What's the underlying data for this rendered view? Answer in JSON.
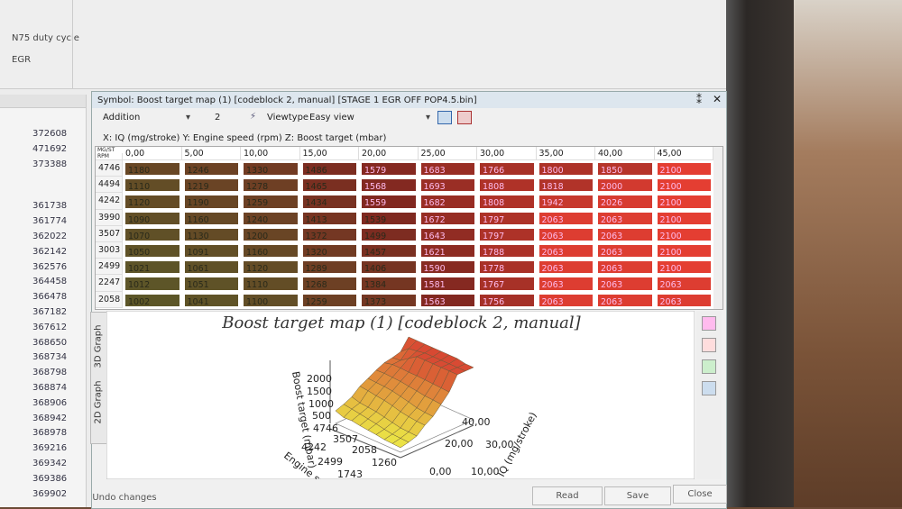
{
  "side_panel": {
    "items": [
      "N75 duty cycle",
      "EGR"
    ]
  },
  "address_list": [
    "372608",
    "471692",
    "373388",
    "361738",
    "361774",
    "362022",
    "362142",
    "362576",
    "364458",
    "366478",
    "367182",
    "367612",
    "368650",
    "368734",
    "368798",
    "368874",
    "368906",
    "368942",
    "368978",
    "369216",
    "369342",
    "369386",
    "369902"
  ],
  "window": {
    "title": "Symbol: Boost target map (1) [codeblock 2, manual] [STAGE 1 EGR OFF POP4.5.bin]",
    "toolbar": {
      "operation": "Addition",
      "amount": "2",
      "viewtype_label": "Viewtype",
      "viewtype": "Easy view"
    },
    "axes_description": "X: IQ (mg/stroke) Y: Engine speed (rpm) Z: Boost target (mbar)",
    "table": {
      "corner": [
        "MG/ST",
        "RPM"
      ],
      "columns": [
        "0,00",
        "5,00",
        "10,00",
        "15,00",
        "20,00",
        "25,00",
        "30,00",
        "35,00",
        "40,00",
        "45,00"
      ],
      "rows": [
        {
          "rpm": 4746,
          "values": [
            1180,
            1246,
            1330,
            1486,
            1579,
            1683,
            1766,
            1800,
            1850,
            2100
          ]
        },
        {
          "rpm": 4494,
          "values": [
            1110,
            1219,
            1278,
            1465,
            1568,
            1693,
            1808,
            1818,
            2000,
            2100
          ]
        },
        {
          "rpm": 4242,
          "values": [
            1120,
            1190,
            1259,
            1434,
            1559,
            1682,
            1808,
            1942,
            2026,
            2100
          ]
        },
        {
          "rpm": 3990,
          "values": [
            1090,
            1160,
            1240,
            1413,
            1539,
            1672,
            1797,
            2063,
            2063,
            2100
          ]
        },
        {
          "rpm": 3507,
          "values": [
            1070,
            1130,
            1200,
            1372,
            1499,
            1643,
            1797,
            2063,
            2063,
            2100
          ]
        },
        {
          "rpm": 3003,
          "values": [
            1050,
            1091,
            1160,
            1320,
            1457,
            1621,
            1788,
            2063,
            2063,
            2100
          ]
        },
        {
          "rpm": 2499,
          "values": [
            1021,
            1061,
            1120,
            1289,
            1406,
            1590,
            1778,
            2063,
            2063,
            2100
          ]
        },
        {
          "rpm": 2247,
          "values": [
            1012,
            1051,
            1110,
            1268,
            1384,
            1581,
            1767,
            2063,
            2063,
            2063
          ]
        },
        {
          "rpm": 2058,
          "values": [
            1002,
            1041,
            1100,
            1259,
            1373,
            1563,
            1756,
            2063,
            2063,
            2063
          ]
        }
      ]
    },
    "graph": {
      "title": "Boost target map (1) [codeblock 2, manual]",
      "tabs": [
        "3D Graph",
        "2D Graph"
      ],
      "z_label": "Boost target (mbar)",
      "y_label": "Engine speed (rpm)",
      "x_label": "IQ (mg/stroke)",
      "z_ticks": [
        "2000",
        "1500",
        "1000",
        "500"
      ],
      "y_ticks": [
        "4746",
        "4242",
        "3507",
        "2499",
        "2058",
        "1743",
        "1260"
      ],
      "x_ticks": [
        "40,00",
        "20,00",
        "30,00",
        "0,00",
        "10,00"
      ]
    },
    "buttons": {
      "undo": "Undo changes",
      "read": "Read",
      "save": "Save",
      "close": "Close"
    }
  }
}
